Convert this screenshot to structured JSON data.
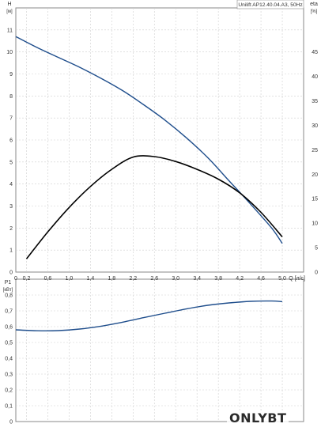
{
  "chart_data": [
    {
      "type": "line",
      "title": "Unilift AP12.40.04.A3, 50Hz",
      "xlabel": "Q [л/с]",
      "ylabel": "H [м]",
      "ylabel_right": "eta [%]",
      "xlim": [
        0,
        5.4
      ],
      "ylim": [
        0,
        12
      ],
      "ylim_right": [
        0,
        54
      ],
      "x_ticks": [
        "0",
        "0,2",
        "0,6",
        "1,0",
        "1,4",
        "1,8",
        "2,2",
        "2,6",
        "3,0",
        "3,4",
        "3,8",
        "4,2",
        "4,6",
        "5,0"
      ],
      "y_ticks": [
        "0",
        "1",
        "2",
        "3",
        "4",
        "5",
        "6",
        "7",
        "8",
        "9",
        "10",
        "11"
      ],
      "y_ticks_right": [
        "0",
        "5",
        "10",
        "15",
        "20",
        "25",
        "30",
        "35",
        "40",
        "45"
      ],
      "grid": true,
      "series": [
        {
          "color": "#1f4e8c",
          "axis": "left",
          "points": [
            [
              0,
              10.7
            ],
            [
              0.4,
              10.2
            ],
            [
              0.8,
              9.75
            ],
            [
              1.2,
              9.3
            ],
            [
              1.6,
              8.8
            ],
            [
              2.0,
              8.25
            ],
            [
              2.4,
              7.6
            ],
            [
              2.8,
              6.9
            ],
            [
              3.2,
              6.1
            ],
            [
              3.6,
              5.2
            ],
            [
              4.0,
              4.15
            ],
            [
              4.4,
              3.1
            ],
            [
              4.8,
              2.0
            ],
            [
              5.0,
              1.3
            ]
          ]
        },
        {
          "color": "#000000",
          "axis": "right",
          "points": [
            [
              0.2,
              2.7
            ],
            [
              0.6,
              8.2
            ],
            [
              1.0,
              13.2
            ],
            [
              1.4,
              17.5
            ],
            [
              1.8,
              21.0
            ],
            [
              2.2,
              23.5
            ],
            [
              2.6,
              23.6
            ],
            [
              3.0,
              22.6
            ],
            [
              3.4,
              21.0
            ],
            [
              3.8,
              19.0
            ],
            [
              4.2,
              16.2
            ],
            [
              4.6,
              12.2
            ],
            [
              5.0,
              7.2
            ]
          ]
        }
      ]
    },
    {
      "type": "line",
      "title": "",
      "ylabel": "P1 [кВт]",
      "xlim": [
        0,
        5.4
      ],
      "ylim": [
        0,
        0.9
      ],
      "y_ticks": [
        "0",
        "0,1",
        "0,2",
        "0,3",
        "0,4",
        "0,5",
        "0,6",
        "0,7",
        "0,8"
      ],
      "grid": true,
      "series": [
        {
          "color": "#1f4e8c",
          "points": [
            [
              0,
              0.58
            ],
            [
              0.4,
              0.574
            ],
            [
              0.8,
              0.575
            ],
            [
              1.2,
              0.585
            ],
            [
              1.6,
              0.603
            ],
            [
              2.0,
              0.628
            ],
            [
              2.4,
              0.657
            ],
            [
              2.8,
              0.685
            ],
            [
              3.2,
              0.712
            ],
            [
              3.6,
              0.735
            ],
            [
              4.0,
              0.75
            ],
            [
              4.4,
              0.76
            ],
            [
              4.8,
              0.762
            ],
            [
              5.0,
              0.758
            ]
          ]
        }
      ]
    }
  ],
  "brand": "ONLYBT"
}
